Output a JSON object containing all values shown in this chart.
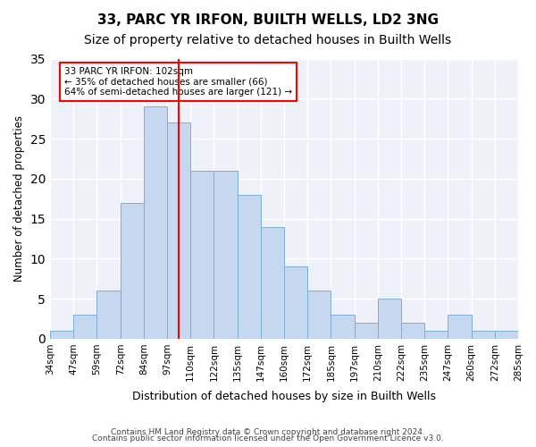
{
  "title": "33, PARC YR IRFON, BUILTH WELLS, LD2 3NG",
  "subtitle": "Size of property relative to detached houses in Builth Wells",
  "xlabel": "Distribution of detached houses by size in Builth Wells",
  "ylabel": "Number of detached properties",
  "bin_labels": [
    "34sqm",
    "47sqm",
    "59sqm",
    "72sqm",
    "84sqm",
    "97sqm",
    "110sqm",
    "122sqm",
    "135sqm",
    "147sqm",
    "160sqm",
    "172sqm",
    "185sqm",
    "197sqm",
    "210sqm",
    "222sqm",
    "235sqm",
    "247sqm",
    "260sqm",
    "272sqm",
    "285sqm"
  ],
  "bar_heights": [
    1,
    3,
    6,
    17,
    29,
    27,
    21,
    21,
    18,
    14,
    9,
    6,
    3,
    2,
    5,
    2,
    1,
    3,
    1,
    1
  ],
  "bar_color": "#c5d8f0",
  "bar_edge_color": "#7bafd4",
  "vline_x": 5.5,
  "vline_color": "red",
  "annotation_text": "33 PARC YR IRFON: 102sqm\n← 35% of detached houses are smaller (66)\n64% of semi-detached houses are larger (121) →",
  "annotation_box_color": "white",
  "annotation_box_edge": "red",
  "ylim": [
    0,
    35
  ],
  "yticks": [
    0,
    5,
    10,
    15,
    20,
    25,
    30,
    35
  ],
  "footer_line1": "Contains HM Land Registry data © Crown copyright and database right 2024.",
  "footer_line2": "Contains public sector information licensed under the Open Government Licence v3.0.",
  "bg_color": "#eef2f8",
  "grid_color": "white",
  "title_fontsize": 11,
  "subtitle_fontsize": 10
}
